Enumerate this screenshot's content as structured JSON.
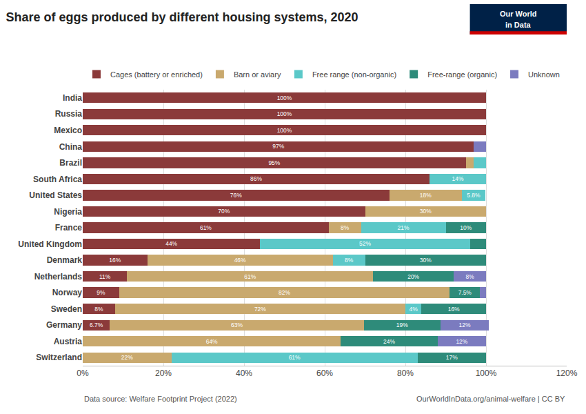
{
  "chart_data": {
    "type": "bar",
    "orientation": "horizontal",
    "stacked": true,
    "title": "Share of eggs produced by different housing systems, 2020",
    "categories": [
      "India",
      "Russia",
      "Mexico",
      "China",
      "Brazil",
      "South Africa",
      "United States",
      "Nigeria",
      "France",
      "United Kingdom",
      "Denmark",
      "Netherlands",
      "Norway",
      "Sweden",
      "Germany",
      "Austria",
      "Switzerland"
    ],
    "series": [
      {
        "name": "Cages (battery or enriched)",
        "color": "#8B3A3A",
        "values": [
          100,
          100,
          100,
          97,
          95,
          86,
          76,
          70,
          61,
          44,
          16,
          11,
          9,
          8,
          6.7,
          0,
          0
        ],
        "value_labels": [
          "100%",
          "100%",
          "100%",
          "97%",
          "95%",
          "86%",
          "76%",
          "70%",
          "61%",
          "44%",
          "16%",
          "11%",
          "9%",
          "8%",
          "6.7%",
          null,
          null
        ]
      },
      {
        "name": "Barn or aviary",
        "color": "#C9A96E",
        "values": [
          0,
          0,
          0,
          0,
          2,
          0,
          18,
          30,
          8,
          0,
          46,
          61,
          82,
          72,
          63,
          64,
          22
        ],
        "value_labels": [
          null,
          null,
          null,
          null,
          null,
          null,
          "18%",
          "30%",
          "8%",
          null,
          "46%",
          "61%",
          "82%",
          "72%",
          "63%",
          "64%",
          "22%"
        ]
      },
      {
        "name": "Free range (non-organic)",
        "color": "#5BC8C8",
        "values": [
          0,
          0,
          0,
          0,
          3,
          14,
          5.8,
          0,
          21,
          52,
          8,
          0,
          0,
          4,
          0,
          0,
          61
        ],
        "value_labels": [
          null,
          null,
          null,
          null,
          null,
          "14%",
          "5.8%",
          null,
          "21%",
          "52%",
          "8%",
          null,
          null,
          "4%",
          null,
          null,
          "61%"
        ]
      },
      {
        "name": "Free-range (organic)",
        "color": "#2E8B7A",
        "values": [
          0,
          0,
          0,
          0,
          0,
          0,
          0,
          0,
          10,
          4,
          30,
          20,
          7.5,
          16,
          19,
          24,
          17
        ],
        "value_labels": [
          null,
          null,
          null,
          null,
          null,
          null,
          null,
          null,
          "10%",
          null,
          "30%",
          "20%",
          "7.5%",
          "16%",
          "19%",
          "24%",
          "17%"
        ]
      },
      {
        "name": "Unknown",
        "color": "#7B7BBF",
        "values": [
          0,
          0,
          0,
          3,
          0,
          0,
          0,
          0,
          0,
          0,
          0,
          8,
          1.5,
          0,
          12,
          12,
          0
        ],
        "value_labels": [
          null,
          null,
          null,
          null,
          null,
          null,
          null,
          null,
          null,
          null,
          null,
          "8%",
          null,
          null,
          "12%",
          "12%",
          null
        ]
      }
    ],
    "data_labels": true,
    "xlim": [
      0,
      120
    ],
    "xticks": [
      {
        "value": 0,
        "label": "0%"
      },
      {
        "value": 20,
        "label": "20%"
      },
      {
        "value": 40,
        "label": "40%"
      },
      {
        "value": 60,
        "label": "60%"
      },
      {
        "value": 80,
        "label": "80%"
      },
      {
        "value": 100,
        "label": "100%"
      },
      {
        "value": 120,
        "label": "120%"
      }
    ],
    "grid": true,
    "legend": "upper left",
    "annotations": [
      "Data source: Welfare Footprint Project (2022)",
      "OurWorldInData.org/animal-welfare | CC BY",
      "Our World",
      "in Data"
    ]
  }
}
